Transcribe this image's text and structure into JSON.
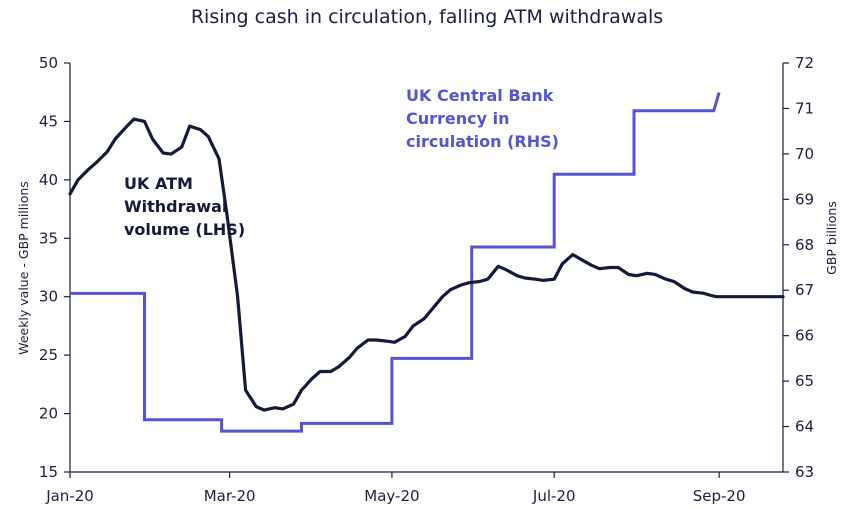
{
  "chart_data": {
    "type": "line",
    "title": "Rising cash in circulation, falling ATM withdrawals",
    "ylabel_left": "Weekly value - GBP millions",
    "ylabel_right": "GBP billions",
    "ylim_left": [
      15,
      50
    ],
    "ylim_right": [
      63,
      72
    ],
    "yticks_left": [
      "15",
      "20",
      "25",
      "30",
      "35",
      "40",
      "45",
      "50"
    ],
    "yticks_right": [
      "63",
      "64",
      "65",
      "66",
      "67",
      "68",
      "69",
      "70",
      "71",
      "72"
    ],
    "xlim": [
      0,
      268
    ],
    "x_ticks": [
      {
        "label": "Jan-20",
        "day": 0
      },
      {
        "label": "Mar-20",
        "day": 60
      },
      {
        "label": "May-20",
        "day": 121
      },
      {
        "label": "Jul-20",
        "day": 182
      },
      {
        "label": "Sep-20",
        "day": 244
      }
    ],
    "colors": {
      "atm": "#141a3c",
      "currency": "#5355d6"
    },
    "series": [
      {
        "name": "UK ATM Withdrawal volume (LHS)",
        "label_lines": [
          "UK ATM",
          "Withdrawal",
          "volume (LHS)"
        ],
        "axis": "left",
        "x": [
          0,
          3,
          7,
          10,
          14,
          17,
          21,
          24,
          28,
          31,
          35,
          38,
          42,
          45,
          49,
          52,
          56,
          59,
          63,
          66,
          70,
          73,
          77,
          80,
          84,
          87,
          91,
          94,
          98,
          101,
          105,
          108,
          112,
          115,
          119,
          122,
          126,
          129,
          133,
          136,
          140,
          143,
          147,
          150,
          154,
          157,
          161,
          164,
          168,
          171,
          175,
          178,
          182,
          185,
          189,
          192,
          196,
          199,
          203,
          206,
          210,
          213,
          217,
          220,
          224,
          227,
          231,
          234,
          238,
          241,
          243,
          245,
          249,
          252,
          256,
          259,
          263,
          266,
          268
        ],
        "values": [
          38.8,
          40.0,
          40.9,
          41.5,
          42.4,
          43.5,
          44.5,
          45.2,
          45.0,
          43.5,
          42.3,
          42.2,
          42.8,
          44.6,
          44.3,
          43.7,
          41.8,
          37.0,
          30.0,
          22.0,
          20.6,
          20.3,
          20.5,
          20.4,
          20.8,
          22.0,
          23.0,
          23.6,
          23.6,
          24.0,
          24.8,
          25.6,
          26.3,
          26.3,
          26.2,
          26.1,
          26.6,
          27.5,
          28.1,
          28.9,
          30.0,
          30.6,
          31.0,
          31.2,
          31.3,
          31.5,
          32.6,
          32.3,
          31.8,
          31.6,
          31.5,
          31.4,
          31.5,
          32.8,
          33.6,
          33.2,
          32.7,
          32.4,
          32.5,
          32.5,
          31.9,
          31.8,
          32.0,
          31.9,
          31.5,
          31.3,
          30.7,
          30.4,
          30.3,
          30.1,
          30.0,
          30.0,
          30.0,
          30.0,
          30.0,
          30.0,
          30.0,
          30.0,
          30.0
        ]
      },
      {
        "name": "UK Central Bank Currency in circulation (RHS)",
        "label_lines": [
          "UK Central Bank",
          "Currency in",
          "circulation (RHS)"
        ],
        "axis": "right",
        "step": true,
        "x": [
          0,
          28,
          28,
          57,
          57,
          87,
          87,
          90,
          90,
          121,
          121,
          151,
          151,
          182,
          182,
          212,
          212,
          242,
          242,
          244
        ],
        "values": [
          66.93,
          66.93,
          64.15,
          64.15,
          63.9,
          63.9,
          64.07,
          64.07,
          64.07,
          64.07,
          65.5,
          65.5,
          67.95,
          67.95,
          69.55,
          69.55,
          70.95,
          70.95,
          70.95,
          71.35
        ]
      }
    ]
  }
}
